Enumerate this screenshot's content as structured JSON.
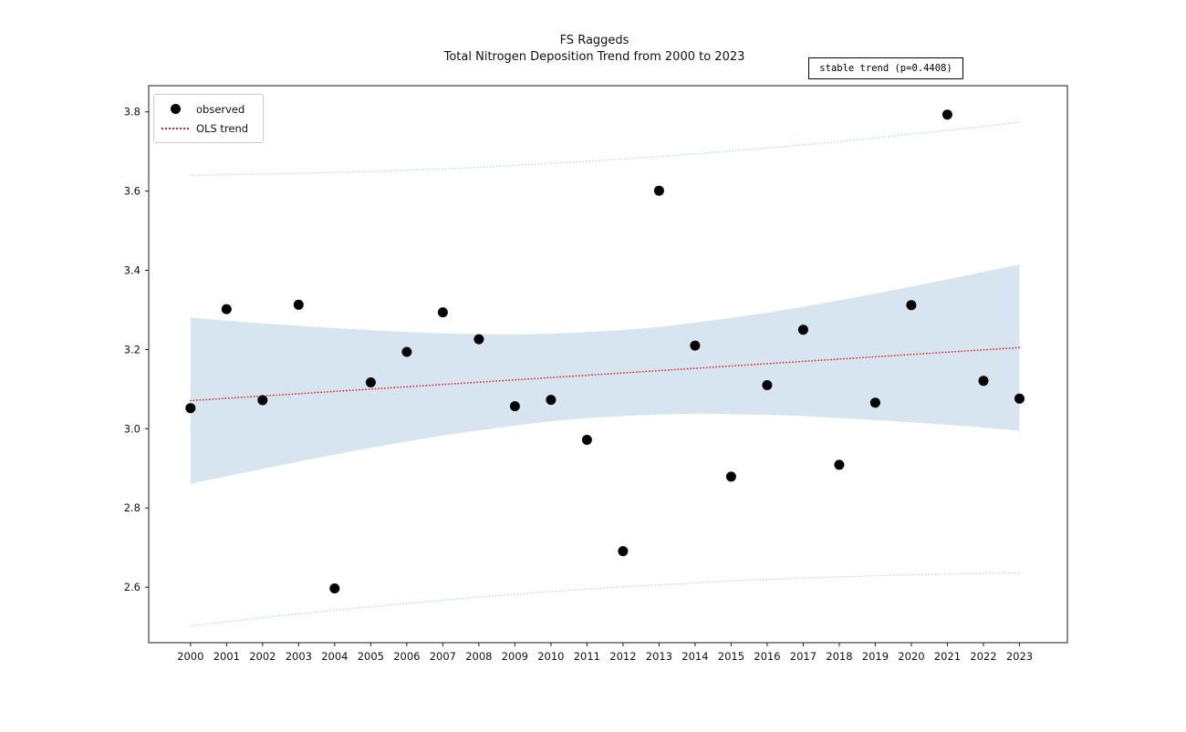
{
  "figure": {
    "title_line1": "FS Raggeds",
    "title_line2": "Total Nitrogen Deposition Trend from 2000 to 2023",
    "annotation": "stable trend (p=0.4408)"
  },
  "legend": {
    "items": [
      {
        "label": "observed",
        "marker": "black-dot"
      },
      {
        "label": "OLS trend",
        "marker": "red-dotted-line"
      }
    ]
  },
  "chart_data": {
    "type": "scatter",
    "title": "FS Raggeds",
    "subtitle": "Total Nitrogen Deposition Trend from 2000 to 2023",
    "annotation": "stable trend (p=0.4408)",
    "xlabel": "",
    "ylabel": "",
    "legend_position": "upper left",
    "grid": false,
    "x": [
      2000,
      2001,
      2002,
      2003,
      2004,
      2005,
      2006,
      2007,
      2008,
      2009,
      2010,
      2011,
      2012,
      2013,
      2014,
      2015,
      2016,
      2017,
      2018,
      2019,
      2020,
      2021,
      2022,
      2023
    ],
    "series": [
      {
        "name": "observed",
        "type": "scatter",
        "color": "#000000",
        "values": [
          3.052,
          3.302,
          3.072,
          3.313,
          2.597,
          3.117,
          3.194,
          3.294,
          3.226,
          3.057,
          3.073,
          2.972,
          2.691,
          3.601,
          3.21,
          2.879,
          3.11,
          3.25,
          2.909,
          3.066,
          3.312,
          3.793,
          3.121,
          3.076
        ]
      }
    ],
    "trend": {
      "name": "OLS trend",
      "style": "dotted",
      "color": "#dd2323",
      "x": [
        2000,
        2023
      ],
      "y": [
        3.071,
        3.205
      ]
    },
    "ci_band": {
      "name": "confidence-band",
      "color": "#d7e5f1",
      "upper": [
        3.281,
        3.273,
        3.266,
        3.26,
        3.254,
        3.249,
        3.244,
        3.241,
        3.239,
        3.238,
        3.24,
        3.244,
        3.249,
        3.257,
        3.268,
        3.28,
        3.293,
        3.308,
        3.324,
        3.341,
        3.359,
        3.377,
        3.396,
        3.415
      ],
      "lower": [
        2.861,
        2.88,
        2.899,
        2.917,
        2.935,
        2.952,
        2.968,
        2.983,
        2.996,
        3.008,
        3.019,
        3.027,
        3.032,
        3.036,
        3.038,
        3.037,
        3.035,
        3.032,
        3.027,
        3.022,
        3.016,
        3.01,
        3.003,
        2.995
      ]
    },
    "pi_lines": {
      "name": "prediction-interval",
      "style": "dotted",
      "color": "#c3d6ea",
      "upper": [
        3.64,
        3.641,
        3.643,
        3.645,
        3.647,
        3.65,
        3.653,
        3.656,
        3.66,
        3.665,
        3.67,
        3.675,
        3.681,
        3.687,
        3.694,
        3.701,
        3.709,
        3.717,
        3.725,
        3.734,
        3.744,
        3.753,
        3.763,
        3.774
      ],
      "lower": [
        2.502,
        2.513,
        2.523,
        2.533,
        2.542,
        2.551,
        2.559,
        2.567,
        2.575,
        2.582,
        2.589,
        2.595,
        2.601,
        2.606,
        2.611,
        2.616,
        2.62,
        2.623,
        2.626,
        2.629,
        2.632,
        2.633,
        2.635,
        2.636
      ]
    },
    "axis": {
      "xlim": [
        1998.84,
        2024.33
      ],
      "ylim": [
        2.46,
        3.866
      ],
      "xticks": [
        2000,
        2001,
        2002,
        2003,
        2004,
        2005,
        2006,
        2007,
        2008,
        2009,
        2010,
        2011,
        2012,
        2013,
        2014,
        2015,
        2016,
        2017,
        2018,
        2019,
        2020,
        2021,
        2022,
        2023
      ],
      "xtick_labels": [
        "2000",
        "2001",
        "2002",
        "2003",
        "2004",
        "2005",
        "2006",
        "2007",
        "2008",
        "2009",
        "2010",
        "2011",
        "2012",
        "2013",
        "2014",
        "2015",
        "2016",
        "2017",
        "2018",
        "2019",
        "2020",
        "2021",
        "2022",
        "2023"
      ],
      "yticks": [
        2.6,
        2.8,
        3.0,
        3.2,
        3.4,
        3.6,
        3.8
      ],
      "ytick_labels": [
        "2.6",
        "2.8",
        "3.0",
        "3.2",
        "3.4",
        "3.6",
        "3.8"
      ]
    }
  }
}
